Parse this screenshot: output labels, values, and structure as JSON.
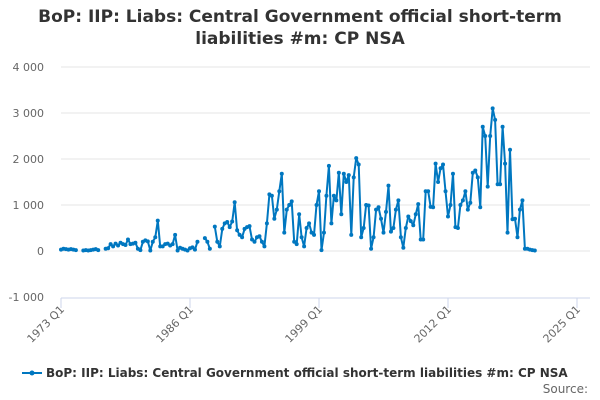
{
  "chart_data": {
    "type": "line",
    "title": "BoP: IIP: Liabs: Central Government official short-term liabilities #m: CP NSA",
    "xlabel": "",
    "ylabel": "",
    "ylim": [
      -1000,
      4000
    ],
    "yticks": [
      "4 000",
      "3 000",
      "2 000",
      "1 000",
      "0",
      "-1 000"
    ],
    "ytick_values": [
      4000,
      3000,
      2000,
      1000,
      0,
      -1000
    ],
    "xticks": [
      "1973 Q1",
      "1986 Q1",
      "1999 Q1",
      "2012 Q1",
      "2025 Q1"
    ],
    "x_start": "1973 Q1",
    "frequency": "quarterly",
    "grid": true,
    "legend": "bottom",
    "color": "#0077c0",
    "series": [
      {
        "name": "BoP: IIP: Liabs: Central Government official short-term liabilities #m: CP NSA",
        "values": [
          30,
          50,
          40,
          30,
          40,
          30,
          20,
          null,
          null,
          10,
          20,
          10,
          20,
          30,
          40,
          20,
          null,
          null,
          50,
          60,
          150,
          100,
          160,
          120,
          180,
          150,
          130,
          250,
          150,
          160,
          180,
          50,
          20,
          200,
          230,
          210,
          10,
          200,
          300,
          660,
          100,
          100,
          150,
          160,
          120,
          150,
          350,
          10,
          70,
          50,
          30,
          10,
          60,
          80,
          30,
          200,
          null,
          null,
          280,
          200,
          50,
          null,
          530,
          200,
          100,
          480,
          600,
          630,
          520,
          640,
          1060,
          450,
          350,
          300,
          480,
          520,
          540,
          250,
          200,
          300,
          320,
          200,
          100,
          600,
          1230,
          1200,
          700,
          900,
          1300,
          1680,
          400,
          900,
          1000,
          1080,
          200,
          150,
          800,
          300,
          100,
          500,
          600,
          400,
          350,
          1000,
          1300,
          20,
          400,
          1200,
          1850,
          600,
          1200,
          1100,
          1700,
          800,
          1680,
          1500,
          1650,
          350,
          1600,
          2020,
          1880,
          300,
          500,
          1000,
          990,
          50,
          300,
          900,
          950,
          700,
          400,
          850,
          1420,
          420,
          500,
          900,
          1100,
          300,
          70,
          500,
          750,
          650,
          560,
          800,
          1020,
          250,
          250,
          1300,
          1300,
          960,
          950,
          1900,
          1500,
          1800,
          1880,
          1300,
          750,
          1000,
          1680,
          520,
          500,
          1000,
          1100,
          1300,
          900,
          1050,
          1700,
          1750,
          1600,
          950,
          2700,
          2500,
          1400,
          2500,
          3100,
          2850,
          1450,
          1450,
          2700,
          1900,
          400,
          2200,
          690,
          700,
          300,
          900,
          1100,
          50,
          50,
          30,
          20,
          10
        ]
      }
    ]
  },
  "legend_label": "BoP: IIP: Liabs: Central Government official short-term liabilities #m: CP NSA",
  "source_label": "Source:"
}
